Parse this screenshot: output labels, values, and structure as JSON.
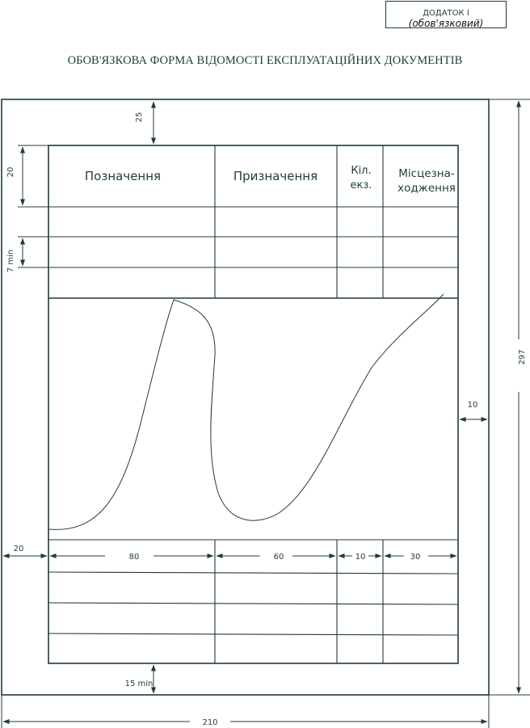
{
  "stamp": {
    "line1": "ДОДАТОК I",
    "line2": "(обов'язковий)"
  },
  "title": "ОБОВ'ЯЗКОВА ФОРМА ВІДОМОСТІ ЕКСПЛУАТАЦІЙНИХ ДОКУМЕНТІВ",
  "table": {
    "headers": [
      "Позначення",
      "Призначення",
      "Кіл.",
      "екз.",
      "Місцезна-",
      "ходження"
    ]
  },
  "dimensions": {
    "top_margin": "25",
    "header_height": "20",
    "row_height": "7 min",
    "right_margin": "10",
    "sheet_height": "297",
    "left_margin": "20",
    "col1": "80",
    "col2": "60",
    "col3": "10",
    "col4": "30",
    "bottom_margin": "15 min",
    "sheet_width": "210"
  },
  "colors": {
    "ink": "#1f3d33"
  }
}
